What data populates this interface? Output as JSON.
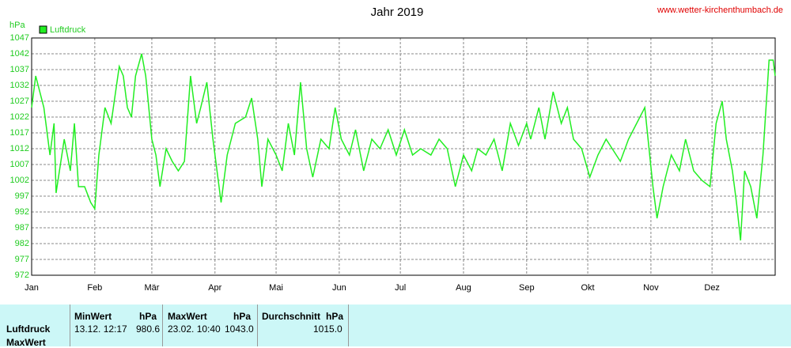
{
  "chart_data": {
    "type": "line",
    "title": "Jahr 2019",
    "source": "www.wetter-kirchenthumbach.de",
    "y_unit": "hPa",
    "x": [
      0,
      2,
      6,
      9,
      11,
      12,
      16,
      19,
      21,
      23,
      26,
      29,
      31,
      33,
      36,
      39,
      43,
      45,
      47,
      49,
      51,
      54,
      56,
      59,
      61,
      63,
      66,
      69,
      72,
      75,
      78,
      81,
      83,
      86,
      89,
      93,
      96,
      100,
      105,
      108,
      111,
      113,
      116,
      120,
      123,
      126,
      129,
      132,
      135,
      138,
      142,
      146,
      149,
      152,
      156,
      159,
      163,
      167,
      171,
      175,
      179,
      183,
      187,
      191,
      196,
      200,
      204,
      208,
      212,
      216,
      219,
      223,
      227,
      231,
      235,
      239,
      243,
      245,
      249,
      252,
      256,
      260,
      263,
      266,
      270,
      274,
      278,
      282,
      285,
      289,
      293,
      297,
      301,
      305,
      307,
      310,
      314,
      318,
      321,
      325,
      329,
      333,
      336,
      339,
      341,
      344,
      346,
      348,
      350,
      353,
      356,
      359,
      362,
      364,
      365
    ],
    "series": [
      {
        "name": "Luftdruck",
        "color": "#22ee22",
        "values": [
          1025,
          1035,
          1025,
          1010,
          1020,
          998,
          1015,
          1005,
          1020,
          1000,
          1000,
          995,
          993,
          1010,
          1025,
          1020,
          1038,
          1035,
          1025,
          1022,
          1035,
          1042,
          1035,
          1015,
          1010,
          1000,
          1012,
          1008,
          1005,
          1008,
          1035,
          1020,
          1025,
          1033,
          1015,
          995,
          1010,
          1020,
          1022,
          1028,
          1015,
          1000,
          1015,
          1010,
          1005,
          1020,
          1010,
          1033,
          1012,
          1003,
          1015,
          1012,
          1025,
          1015,
          1010,
          1018,
          1005,
          1015,
          1012,
          1018,
          1010,
          1018,
          1010,
          1012,
          1010,
          1015,
          1012,
          1000,
          1010,
          1005,
          1012,
          1010,
          1015,
          1005,
          1020,
          1013,
          1020,
          1015,
          1025,
          1015,
          1030,
          1020,
          1025,
          1015,
          1012,
          1003,
          1010,
          1015,
          1012,
          1008,
          1015,
          1020,
          1025,
          1000,
          990,
          1000,
          1010,
          1005,
          1015,
          1005,
          1002,
          1000,
          1020,
          1027,
          1015,
          1005,
          995,
          983,
          1005,
          1000,
          990,
          1010,
          1040,
          1040,
          1035
        ]
      }
    ],
    "xlim": [
      0,
      365
    ],
    "xticks": [
      {
        "value": 0,
        "label": "Jan"
      },
      {
        "value": 31,
        "label": "Feb"
      },
      {
        "value": 59,
        "label": "Mär"
      },
      {
        "value": 90,
        "label": "Apr"
      },
      {
        "value": 120,
        "label": "Mai"
      },
      {
        "value": 151,
        "label": "Jun"
      },
      {
        "value": 181,
        "label": "Jul"
      },
      {
        "value": 212,
        "label": "Aug"
      },
      {
        "value": 243,
        "label": "Sep"
      },
      {
        "value": 273,
        "label": "Okt"
      },
      {
        "value": 304,
        "label": "Nov"
      },
      {
        "value": 334,
        "label": "Dez"
      }
    ],
    "ylim": [
      972,
      1047
    ],
    "yticks": [
      972,
      977,
      982,
      987,
      992,
      997,
      1002,
      1007,
      1012,
      1017,
      1022,
      1027,
      1032,
      1037,
      1042,
      1047
    ],
    "grid": true
  },
  "table": {
    "row_labels": [
      "Luftdruck",
      "MaxWert"
    ],
    "columns": [
      {
        "name": "MinWert",
        "unit": "hPa",
        "time": "13.12.  12:17",
        "value": "980.6"
      },
      {
        "name": "MaxWert",
        "unit": "hPa",
        "time": "23.02. 10:40",
        "value": "1043.0"
      },
      {
        "name": "Durchschnitt",
        "unit": "hPa",
        "value": "1015.0"
      }
    ]
  }
}
